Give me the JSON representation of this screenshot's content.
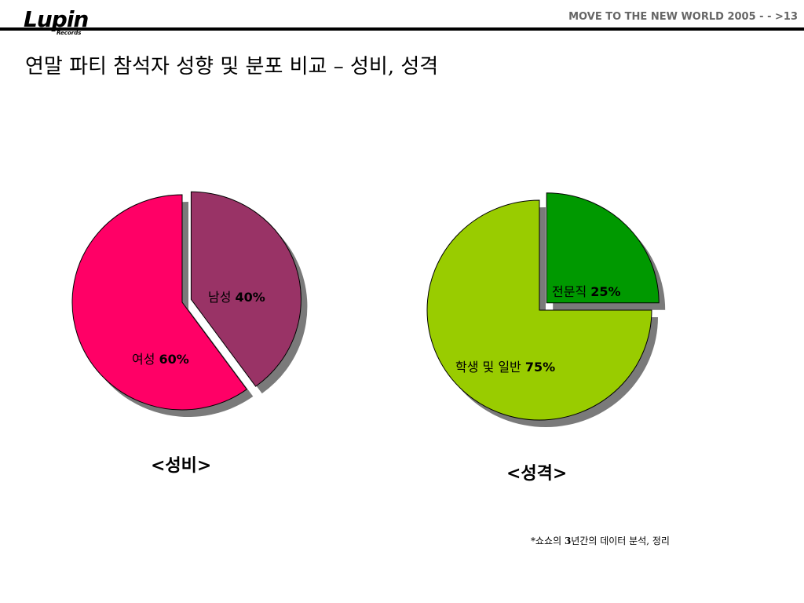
{
  "header": {
    "logo_text": "Lupin",
    "logo_subtext": "Records",
    "right_text": "MOVE TO THE NEW WORLD 2005 - - >13"
  },
  "title": "연말 파티 참석자 성향 및 분포 비교 – 성비, 성격",
  "chart_data": [
    {
      "type": "pie",
      "caption": "<성비>",
      "slices": [
        {
          "label": "남성",
          "value": 40,
          "value_text": "40%",
          "color": "#993366",
          "exploded": true
        },
        {
          "label": "여성",
          "value": 60,
          "value_text": "60%",
          "color": "#FF0066",
          "exploded": false
        }
      ]
    },
    {
      "type": "pie",
      "caption": "<성격>",
      "slices": [
        {
          "label": "전문직",
          "value": 25,
          "value_text": "25%",
          "color": "#009900",
          "exploded": true
        },
        {
          "label": "학생 및 일반",
          "value": 75,
          "value_text": "75%",
          "color": "#99CC00",
          "exploded": false
        }
      ]
    }
  ],
  "footnote": {
    "prefix": "*쇼쇼의 ",
    "number": "3",
    "suffix": "년간의 데이터 분석, 정리"
  }
}
